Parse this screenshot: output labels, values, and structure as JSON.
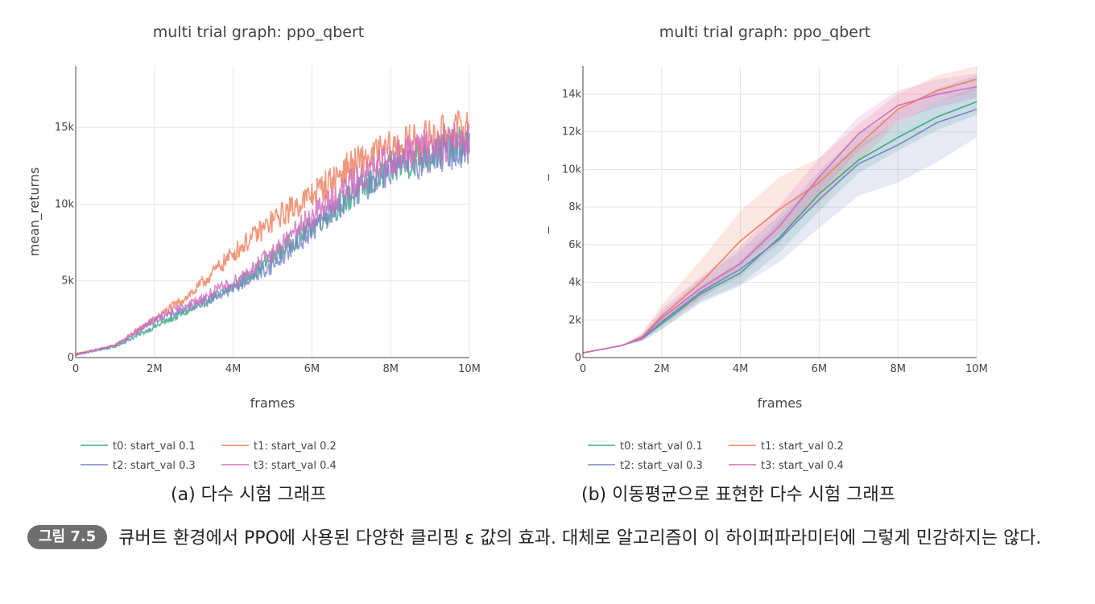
{
  "chart_data": [
    {
      "type": "line",
      "title": "multi trial graph: ppo_qbert",
      "xlabel": "frames",
      "ylabel": "mean_returns",
      "xlim": [
        0,
        10000000
      ],
      "ylim": [
        0,
        19000
      ],
      "x_ticks": [
        "0",
        "2M",
        "4M",
        "6M",
        "8M",
        "10M"
      ],
      "x_tick_values": [
        0,
        2000000,
        4000000,
        6000000,
        8000000,
        10000000
      ],
      "y_ticks": [
        "0",
        "5k",
        "10k",
        "15k"
      ],
      "y_tick_values": [
        0,
        5000,
        10000,
        15000
      ],
      "grid": true,
      "legend_position": "bottom",
      "noisy": true,
      "x": [
        0,
        1000000,
        2000000,
        3000000,
        4000000,
        5000000,
        6000000,
        7000000,
        8000000,
        9000000,
        10000000
      ],
      "series": [
        {
          "name": "t0: start_val 0.1",
          "color": "#3aa887",
          "values": [
            200,
            700,
            2000,
            3200,
            4600,
            6500,
            8600,
            10500,
            12300,
            13300,
            14000
          ]
        },
        {
          "name": "t1: start_val 0.2",
          "color": "#f0805f",
          "values": [
            200,
            800,
            2500,
            4300,
            6800,
            8900,
            10600,
            12500,
            13600,
            14300,
            15000
          ]
        },
        {
          "name": "t2: start_val 0.3",
          "color": "#7a84c6",
          "values": [
            200,
            750,
            2400,
            3400,
            4500,
            6000,
            8300,
            10600,
            12300,
            13000,
            13700
          ]
        },
        {
          "name": "t3: start_val 0.4",
          "color": "#d56bc0",
          "values": [
            200,
            780,
            2500,
            3600,
            4900,
            6800,
            9200,
            11300,
            13000,
            13800,
            14400
          ]
        }
      ]
    },
    {
      "type": "line",
      "title": "multi trial graph: ppo_qbert",
      "xlabel": "frames",
      "ylabel": "mean_returns_ma",
      "xlim": [
        0,
        10000000
      ],
      "ylim": [
        0,
        15500
      ],
      "x_ticks": [
        "0",
        "2M",
        "4M",
        "6M",
        "8M",
        "10M"
      ],
      "x_tick_values": [
        0,
        2000000,
        4000000,
        6000000,
        8000000,
        10000000
      ],
      "y_ticks": [
        "0",
        "2k",
        "4k",
        "6k",
        "8k",
        "10k",
        "12k",
        "14k"
      ],
      "y_tick_values": [
        0,
        2000,
        4000,
        6000,
        8000,
        10000,
        12000,
        14000
      ],
      "grid": true,
      "legend_position": "bottom",
      "noisy": false,
      "x": [
        0,
        1000000,
        1500000,
        2000000,
        3000000,
        4000000,
        5000000,
        6000000,
        7000000,
        8000000,
        9000000,
        10000000
      ],
      "series": [
        {
          "name": "t0: start_val 0.1",
          "color": "#3aa887",
          "values": [
            250,
            650,
            1000,
            1800,
            3400,
            4500,
            6400,
            8700,
            10500,
            11700,
            12800,
            13600
          ],
          "band": [
            [
              250,
              250
            ],
            [
              650,
              650
            ],
            [
              900,
              1100
            ],
            [
              1500,
              2100
            ],
            [
              3000,
              3800
            ],
            [
              3900,
              5100
            ],
            [
              5600,
              7300
            ],
            [
              7800,
              9600
            ],
            [
              9800,
              11300
            ],
            [
              11000,
              12500
            ],
            [
              12100,
              13600
            ],
            [
              12900,
              14400
            ]
          ]
        },
        {
          "name": "t1: start_val 0.2",
          "color": "#f0805f",
          "values": [
            250,
            650,
            1100,
            2200,
            4000,
            6200,
            7900,
            9300,
            11300,
            13200,
            14200,
            14800
          ],
          "band": [
            [
              250,
              250
            ],
            [
              650,
              650
            ],
            [
              950,
              1300
            ],
            [
              1700,
              2800
            ],
            [
              3100,
              5200
            ],
            [
              4900,
              7800
            ],
            [
              6600,
              9600
            ],
            [
              8200,
              10600
            ],
            [
              10400,
              12400
            ],
            [
              12500,
              14000
            ],
            [
              13600,
              15000
            ],
            [
              14200,
              15500
            ]
          ]
        },
        {
          "name": "t2: start_val 0.3",
          "color": "#7a84c6",
          "values": [
            250,
            650,
            1000,
            1900,
            3500,
            4700,
            6300,
            8400,
            10300,
            11300,
            12500,
            13200
          ],
          "band": [
            [
              250,
              250
            ],
            [
              650,
              650
            ],
            [
              850,
              1200
            ],
            [
              1500,
              2400
            ],
            [
              2900,
              4200
            ],
            [
              3800,
              5700
            ],
            [
              5100,
              7600
            ],
            [
              6900,
              9900
            ],
            [
              8600,
              11900
            ],
            [
              9300,
              13100
            ],
            [
              10400,
              14300
            ],
            [
              11700,
              15000
            ]
          ]
        },
        {
          "name": "t3: start_val 0.4",
          "color": "#d56bc0",
          "values": [
            250,
            650,
            1050,
            2100,
            3700,
            5000,
            7000,
            9600,
            11900,
            13400,
            14000,
            14400
          ],
          "band": [
            [
              250,
              250
            ],
            [
              650,
              650
            ],
            [
              900,
              1250
            ],
            [
              1700,
              2600
            ],
            [
              3200,
              4300
            ],
            [
              4300,
              5900
            ],
            [
              6100,
              8100
            ],
            [
              8700,
              10600
            ],
            [
              11000,
              12800
            ],
            [
              12600,
              14200
            ],
            [
              13300,
              14800
            ],
            [
              13800,
              15100
            ]
          ]
        }
      ]
    }
  ],
  "subcaptions": {
    "a": "(a) 다수 시험 그래프",
    "b": "(b) 이동평균으로 표현한 다수 시험 그래프"
  },
  "figure_caption": {
    "label": "그림 7.5",
    "text": "큐버트 환경에서 PPO에 사용된 다양한 클리핑 ε 값의 효과. 대체로 알고리즘이 이 하이퍼파라미터에 그렇게 민감하지는 않다."
  }
}
